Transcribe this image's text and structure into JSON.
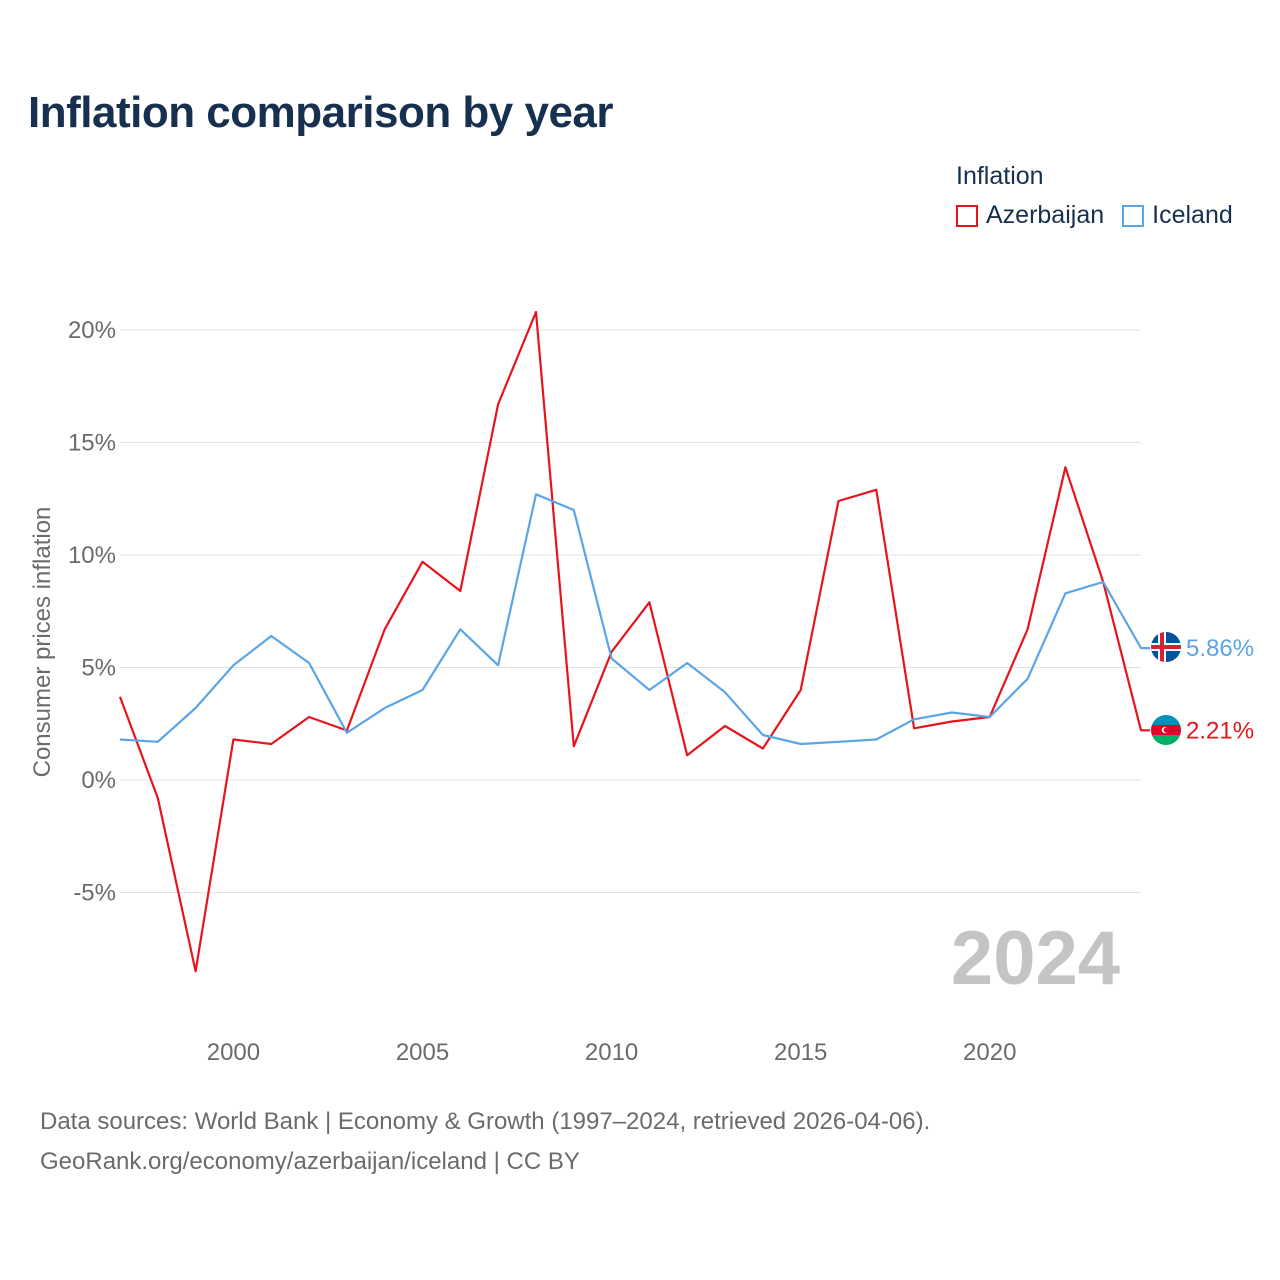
{
  "title": "Inflation comparison by year",
  "legend": {
    "title": "Inflation",
    "items": [
      {
        "label": "Azerbaijan",
        "color": "#e8141c"
      },
      {
        "label": "Iceland",
        "color": "#5aa5e6"
      }
    ]
  },
  "chart_data": {
    "type": "line",
    "title": "Inflation comparison by year",
    "xlabel": "",
    "ylabel": "Consumer prices inflation",
    "x": [
      1997,
      1998,
      1999,
      2000,
      2001,
      2002,
      2003,
      2004,
      2005,
      2006,
      2007,
      2008,
      2009,
      2010,
      2011,
      2012,
      2013,
      2014,
      2015,
      2016,
      2017,
      2018,
      2019,
      2020,
      2021,
      2022,
      2023,
      2024
    ],
    "xlim": [
      1997,
      2024
    ],
    "ylim": [
      -10,
      21
    ],
    "x_ticks": [
      2000,
      2005,
      2010,
      2015,
      2020
    ],
    "y_ticks": [
      -5,
      0,
      5,
      10,
      15,
      20
    ],
    "y_tick_labels": [
      "-5%",
      "0%",
      "5%",
      "10%",
      "15%",
      "20%"
    ],
    "grid": true,
    "series": [
      {
        "name": "Azerbaijan",
        "color": "#e8141c",
        "values": [
          3.7,
          -0.8,
          -8.5,
          1.8,
          1.6,
          2.8,
          2.2,
          6.7,
          9.7,
          8.4,
          16.7,
          20.8,
          1.5,
          5.7,
          7.9,
          1.1,
          2.4,
          1.4,
          4.0,
          12.4,
          12.9,
          2.3,
          2.6,
          2.8,
          6.7,
          13.9,
          8.8,
          2.21
        ],
        "end_label": "2.21%",
        "flag": "azerbaijan-flag"
      },
      {
        "name": "Iceland",
        "color": "#5aa5e6",
        "values": [
          1.8,
          1.7,
          3.2,
          5.1,
          6.4,
          5.2,
          2.1,
          3.2,
          4.0,
          6.7,
          5.1,
          12.7,
          12.0,
          5.4,
          4.0,
          5.2,
          3.9,
          2.0,
          1.6,
          1.7,
          1.8,
          2.7,
          3.0,
          2.8,
          4.5,
          8.3,
          8.8,
          5.86
        ],
        "end_label": "5.86%",
        "flag": "iceland-flag"
      }
    ],
    "watermark_year": "2024"
  },
  "footer": {
    "sources": "Data sources: World Bank | Economy & Growth (1997–2024, retrieved 2026-04-06).",
    "site": "GeoRank.org/economy/azerbaijan/iceland | CC BY"
  }
}
